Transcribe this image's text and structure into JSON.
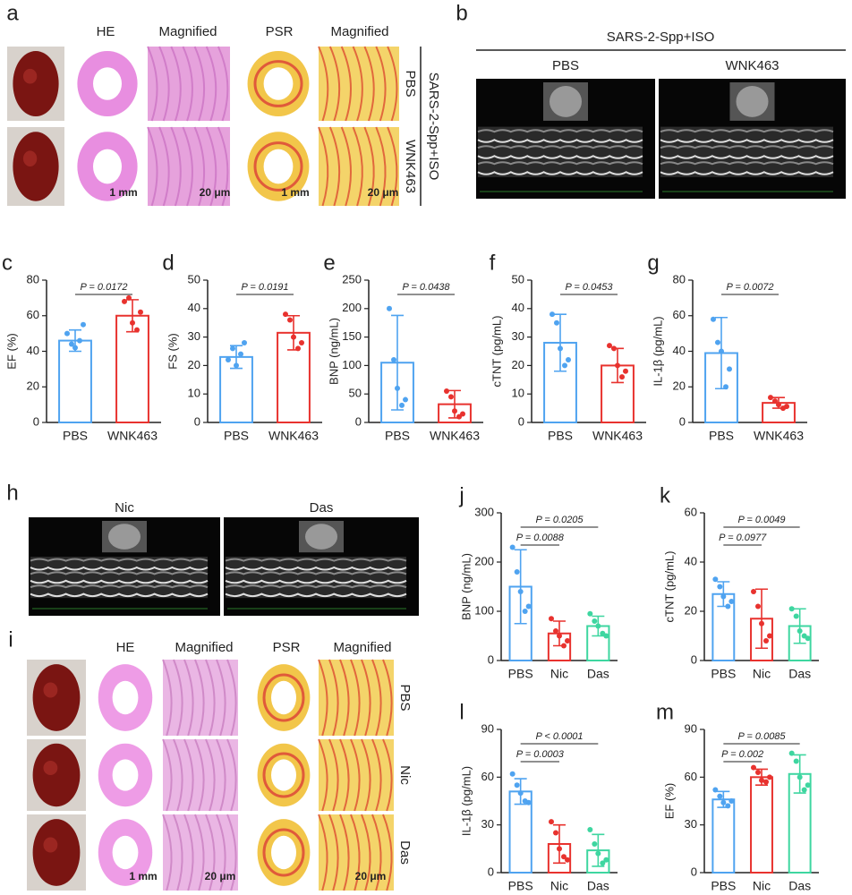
{
  "figure": {
    "a": {
      "label": "a",
      "headers": [
        "HE",
        "Magnified",
        "PSR",
        "Magnified"
      ],
      "rows": [
        "PBS",
        "WNK463"
      ],
      "group": "SARS-2-Spp+ISO",
      "scale": [
        "1 mm",
        "20 μm",
        "1 mm",
        "20 μm"
      ]
    },
    "b": {
      "label": "b",
      "group": "SARS-2-Spp+ISO",
      "columns": [
        "PBS",
        "WNK463"
      ]
    },
    "h": {
      "label": "h",
      "columns": [
        "Nic",
        "Das"
      ]
    },
    "i": {
      "label": "i",
      "headers": [
        "HE",
        "Magnified",
        "PSR",
        "Magnified"
      ],
      "rows": [
        "PBS",
        "Nic",
        "Das"
      ],
      "scale": [
        "1 mm",
        "20 μm",
        "20 μm"
      ]
    }
  },
  "chart_data": [
    {
      "type": "bar",
      "label": "c",
      "ylabel": "EF (%)",
      "categories": [
        "PBS",
        "WNK463"
      ],
      "colors": [
        "#4fa3f0",
        "#e8322e"
      ],
      "values": [
        46,
        60
      ],
      "errors": [
        6,
        9
      ],
      "points": [
        [
          50,
          44,
          42,
          46,
          55
        ],
        [
          68,
          70,
          56,
          52,
          62
        ]
      ],
      "ylim": [
        0,
        80
      ],
      "yticks": [
        0,
        20,
        40,
        60,
        80
      ],
      "annotations": [
        "P = 0.0172"
      ]
    },
    {
      "type": "bar",
      "label": "d",
      "ylabel": "FS (%)",
      "categories": [
        "PBS",
        "WNK463"
      ],
      "colors": [
        "#4fa3f0",
        "#e8322e"
      ],
      "values": [
        23,
        31.5
      ],
      "errors": [
        4,
        6
      ],
      "points": [
        [
          22,
          26,
          20,
          24,
          28
        ],
        [
          38,
          36,
          30,
          26,
          28
        ]
      ],
      "ylim": [
        0,
        50
      ],
      "yticks": [
        0,
        10,
        20,
        30,
        40,
        50
      ],
      "annotations": [
        "P = 0.0191"
      ]
    },
    {
      "type": "bar",
      "label": "e",
      "ylabel": "BNP (ng/mL)",
      "categories": [
        "PBS",
        "WNK463"
      ],
      "colors": [
        "#4fa3f0",
        "#e8322e"
      ],
      "values": [
        105,
        32
      ],
      "errors": [
        83,
        24
      ],
      "points": [
        [
          200,
          110,
          60,
          30,
          40
        ],
        [
          55,
          45,
          20,
          10,
          15
        ]
      ],
      "ylim": [
        0,
        250
      ],
      "yticks": [
        0,
        50,
        100,
        150,
        200,
        250
      ],
      "annotations": [
        "P = 0.0438"
      ]
    },
    {
      "type": "bar",
      "label": "f",
      "ylabel": "cTNT (pg/mL)",
      "categories": [
        "PBS",
        "WNK463"
      ],
      "colors": [
        "#4fa3f0",
        "#e8322e"
      ],
      "values": [
        28,
        20
      ],
      "errors": [
        10,
        6
      ],
      "points": [
        [
          38,
          35,
          26,
          20,
          22
        ],
        [
          27,
          26,
          20,
          16,
          18
        ]
      ],
      "ylim": [
        0,
        50
      ],
      "yticks": [
        0,
        10,
        20,
        30,
        40,
        50
      ],
      "annotations": [
        "P = 0.0453"
      ]
    },
    {
      "type": "bar",
      "label": "g",
      "ylabel": "IL-1β (pg/mL)",
      "categories": [
        "PBS",
        "WNK463"
      ],
      "colors": [
        "#4fa3f0",
        "#e8322e"
      ],
      "values": [
        39,
        11
      ],
      "errors": [
        20,
        3
      ],
      "points": [
        [
          58,
          45,
          40,
          20,
          30
        ],
        [
          14,
          12,
          10,
          8,
          9
        ]
      ],
      "ylim": [
        0,
        80
      ],
      "yticks": [
        0,
        20,
        40,
        60,
        80
      ],
      "annotations": [
        "P = 0.0072"
      ]
    },
    {
      "type": "bar",
      "label": "j",
      "ylabel": "BNP (ng/mL)",
      "categories": [
        "PBS",
        "Nic",
        "Das"
      ],
      "colors": [
        "#4fa3f0",
        "#e8322e",
        "#3ed6a0"
      ],
      "values": [
        150,
        55,
        70
      ],
      "errors": [
        75,
        25,
        20
      ],
      "points": [
        [
          230,
          180,
          140,
          100,
          110
        ],
        [
          85,
          60,
          50,
          30,
          40
        ],
        [
          95,
          80,
          70,
          55,
          50
        ]
      ],
      "ylim": [
        0,
        300
      ],
      "yticks": [
        0,
        100,
        200,
        300
      ],
      "annotations": [
        "P = 0.0088",
        "P = 0.0205"
      ]
    },
    {
      "type": "bar",
      "label": "k",
      "ylabel": "cTNT (pg/mL)",
      "categories": [
        "PBS",
        "Nic",
        "Das"
      ],
      "colors": [
        "#4fa3f0",
        "#e8322e",
        "#3ed6a0"
      ],
      "values": [
        27,
        17,
        14
      ],
      "errors": [
        5,
        12,
        7
      ],
      "points": [
        [
          33,
          30,
          26,
          22,
          24
        ],
        [
          28,
          22,
          15,
          8,
          10
        ],
        [
          21,
          18,
          12,
          10,
          9
        ]
      ],
      "ylim": [
        0,
        60
      ],
      "yticks": [
        0,
        20,
        40,
        60
      ],
      "annotations": [
        "P = 0.0977",
        "P = 0.0049"
      ]
    },
    {
      "type": "bar",
      "label": "l",
      "ylabel": "IL-1β (pg/mL)",
      "categories": [
        "PBS",
        "Nic",
        "Das"
      ],
      "colors": [
        "#4fa3f0",
        "#e8322e",
        "#3ed6a0"
      ],
      "values": [
        51,
        18,
        14
      ],
      "errors": [
        8,
        12,
        10
      ],
      "points": [
        [
          62,
          55,
          50,
          45,
          44
        ],
        [
          32,
          25,
          15,
          10,
          8
        ],
        [
          27,
          18,
          12,
          6,
          8
        ]
      ],
      "ylim": [
        0,
        90
      ],
      "yticks": [
        0,
        30,
        60,
        90
      ],
      "annotations": [
        "P = 0.0003",
        "P < 0.0001"
      ]
    },
    {
      "type": "bar",
      "label": "m",
      "ylabel": "EF (%)",
      "categories": [
        "PBS",
        "Nic",
        "Das"
      ],
      "colors": [
        "#4fa3f0",
        "#e8322e",
        "#3ed6a0"
      ],
      "values": [
        46,
        60,
        62
      ],
      "errors": [
        5,
        5,
        12
      ],
      "points": [
        [
          52,
          48,
          44,
          42,
          45
        ],
        [
          66,
          63,
          58,
          57,
          60
        ],
        [
          75,
          70,
          60,
          52,
          55
        ]
      ],
      "ylim": [
        0,
        90
      ],
      "yticks": [
        0,
        30,
        60,
        90
      ],
      "annotations": [
        "P = 0.002",
        "P = 0.0085"
      ]
    }
  ]
}
